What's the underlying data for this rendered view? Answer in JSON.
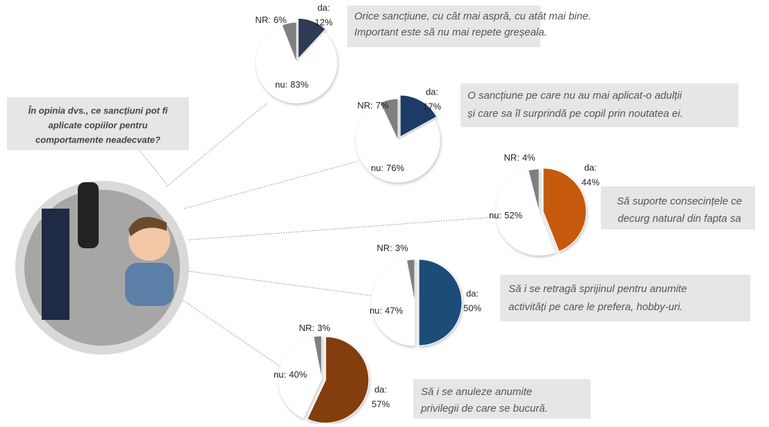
{
  "question": [
    "În opinia dvs., ce sancțiuni pot fi",
    "aplicate copiilor pentru",
    "comportamente neadecvate?"
  ],
  "chart_data": [
    {
      "type": "pie",
      "categories": [
        "da:",
        "nu:",
        "NR:"
      ],
      "values": [
        12,
        83,
        6
      ],
      "value_labels": [
        "12%",
        "83%",
        "6%"
      ],
      "colors": [
        "#2e3b55",
        "#ffffff",
        "#7f7f7f"
      ],
      "note": [
        "Orice sancțiune, cu cât mai aspră, cu atât mai bine.",
        "Important este să nu mai repete greșeala."
      ]
    },
    {
      "type": "pie",
      "categories": [
        "da:",
        "nu:",
        "NR:"
      ],
      "values": [
        17,
        76,
        7
      ],
      "value_labels": [
        "17%",
        "76%",
        "7%"
      ],
      "colors": [
        "#1f3a66",
        "#ffffff",
        "#7f7f7f"
      ],
      "note": [
        "O sancțiune pe care nu au mai aplicat-o adulții",
        "și care sa îl surprindă pe copil prin noutatea ei."
      ]
    },
    {
      "type": "pie",
      "categories": [
        "da:",
        "nu:",
        "NR:"
      ],
      "values": [
        44,
        52,
        4
      ],
      "value_labels": [
        "44%",
        "52%",
        "4%"
      ],
      "colors": [
        "#c55a11",
        "#ffffff",
        "#7f7f7f"
      ],
      "note": [
        "Să suporte consecințele ce",
        "decurg natural din fapta sa"
      ]
    },
    {
      "type": "pie",
      "categories": [
        "da:",
        "nu:",
        "NR:"
      ],
      "values": [
        50,
        47,
        3
      ],
      "value_labels": [
        "50%",
        "47%",
        "3%"
      ],
      "colors": [
        "#1f4e79",
        "#ffffff",
        "#7f7f7f"
      ],
      "note": [
        "Să i se retragă sprijinul pentru anumite",
        "activități pe care le prefera, hobby-uri."
      ]
    },
    {
      "type": "pie",
      "categories": [
        "da:",
        "nu:",
        "NR:"
      ],
      "values": [
        57,
        40,
        3
      ],
      "value_labels": [
        "57%",
        "40%",
        "3%"
      ],
      "colors": [
        "#843c0c",
        "#ffffff",
        "#7f7f7f"
      ],
      "note": [
        "Să i se anuleze anumite",
        "privilegii de care se bucură."
      ]
    }
  ]
}
